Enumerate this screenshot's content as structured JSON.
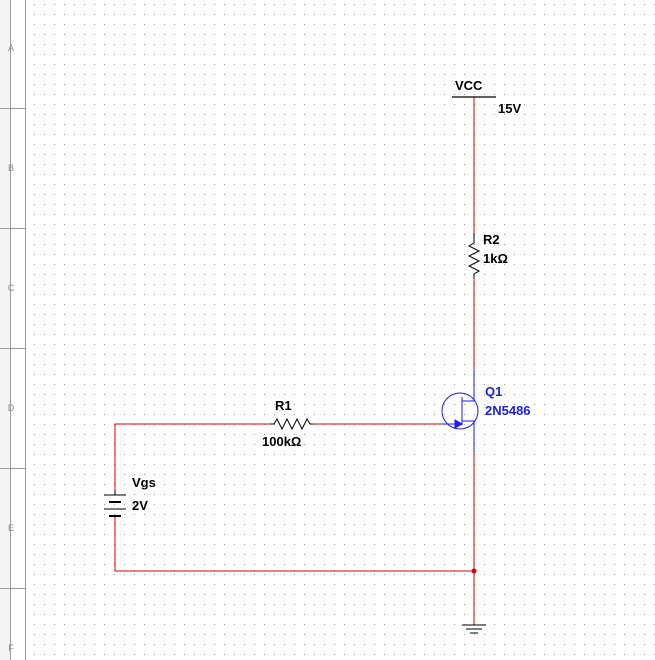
{
  "ruler": {
    "rows": [
      "A",
      "B",
      "C",
      "D",
      "E",
      "F"
    ]
  },
  "colors": {
    "wire": "#e00000",
    "component": "#000000",
    "transistor": "#1a1aff",
    "grid_dot": "#9a9a9a",
    "junction": "#e00000"
  },
  "components": {
    "vcc": {
      "name": "VCC",
      "value": "15V",
      "icon": "vcc-supply-icon"
    },
    "r2": {
      "name": "R2",
      "value": "1kΩ",
      "icon": "resistor-icon"
    },
    "r1": {
      "name": "R1",
      "value": "100kΩ",
      "icon": "resistor-icon"
    },
    "q1": {
      "name": "Q1",
      "value": "2N5486",
      "icon": "n-channel-jfet-icon"
    },
    "vgs": {
      "name": "Vgs",
      "value": "2V",
      "icon": "battery-icon"
    },
    "ground": {
      "icon": "ground-icon"
    }
  }
}
